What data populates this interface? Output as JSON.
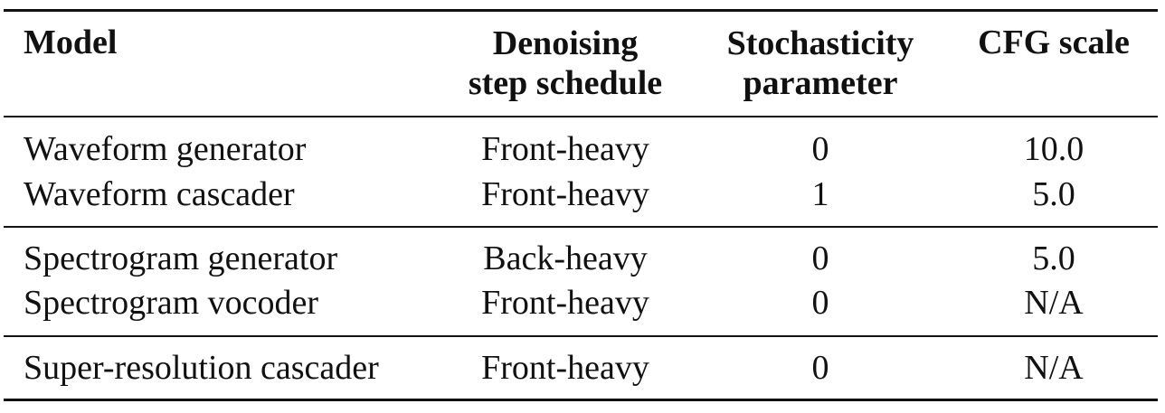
{
  "table": {
    "headers": {
      "model": "Model",
      "schedule_line1": "Denoising",
      "schedule_line2": "step schedule",
      "stoch_line1": "Stochasticity",
      "stoch_line2": "parameter",
      "cfg": "CFG scale"
    },
    "rows": [
      {
        "model": "Waveform generator",
        "schedule": "Front-heavy",
        "stochasticity": "0",
        "cfg": "10.0"
      },
      {
        "model": "Waveform cascader",
        "schedule": "Front-heavy",
        "stochasticity": "1",
        "cfg": "5.0"
      },
      {
        "model": "Spectrogram generator",
        "schedule": "Back-heavy",
        "stochasticity": "0",
        "cfg": "5.0"
      },
      {
        "model": "Spectrogram vocoder",
        "schedule": "Front-heavy",
        "stochasticity": "0",
        "cfg": "N/A"
      },
      {
        "model": "Super-resolution cascader",
        "schedule": "Front-heavy",
        "stochasticity": "0",
        "cfg": "N/A"
      }
    ]
  }
}
